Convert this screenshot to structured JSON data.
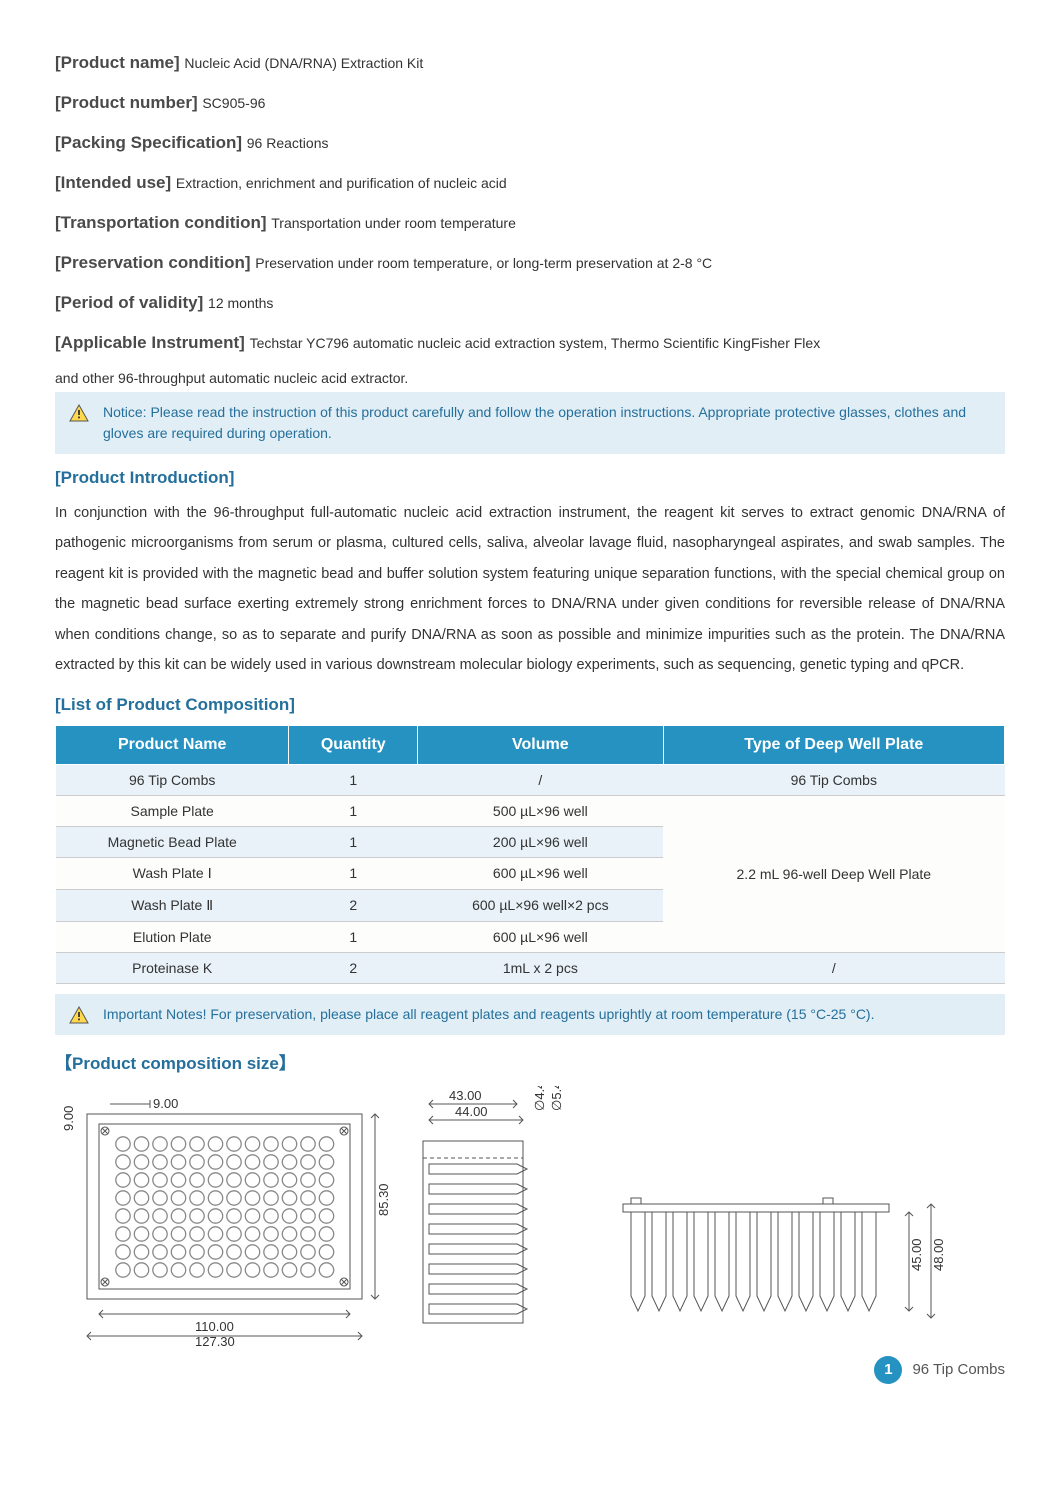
{
  "meta": [
    {
      "label": "[Product name]",
      "value": "Nucleic Acid (DNA/RNA) Extraction Kit"
    },
    {
      "label": "[Product number]",
      "value": "SC905-96"
    },
    {
      "label": "[Packing Specification]",
      "value": "96 Reactions"
    },
    {
      "label": "[Intended use]",
      "value": "Extraction, enrichment and purification of nucleic acid"
    },
    {
      "label": "[Transportation condition]",
      "value": "Transportation under room temperature"
    },
    {
      "label": "[Preservation condition]",
      "value": "Preservation under room temperature, or long-term preservation at 2-8 °C"
    },
    {
      "label": "[Period of validity]",
      "value": "12 months"
    },
    {
      "label": "[Applicable Instrument]",
      "value": "Techstar YC796 automatic nucleic acid extraction system, Thermo Scientific KingFisher Flex"
    }
  ],
  "meta_continue": "and other 96-throughput automatic nucleic acid extractor.",
  "notice1": "Notice: Please read the instruction of this product carefully and follow the operation instructions. Appropriate protective glasses, clothes and gloves are required during operation.",
  "section_intro_header": "[Product Introduction]",
  "intro": "In conjunction with the 96-throughput full-automatic nucleic acid extraction instrument, the reagent kit serves to extract genomic DNA/RNA of pathogenic microorganisms from serum or plasma, cultured cells, saliva, alveolar lavage fluid, nasopharyngeal aspirates, and swab samples. The reagent kit is provided with the magnetic bead and buffer solution system featuring unique separation functions, with the special chemical group on the magnetic bead surface exerting extremely strong enrichment forces to DNA/RNA under given conditions for reversible release of DNA/RNA when conditions change, so as to separate and purify DNA/RNA as soon as possible and minimize impurities such as the protein. The DNA/RNA extracted by this kit can be widely used in various downstream molecular biology experiments, such as sequencing, genetic typing and qPCR.",
  "section_list_header": "[List of Product Composition]",
  "table": {
    "headers": [
      "Product Name",
      "Quantity",
      "Volume",
      "Type of Deep Well Plate"
    ],
    "rows": [
      {
        "cells": [
          "96 Tip Combs",
          "1",
          "/",
          "96 Tip Combs"
        ],
        "alt": true
      },
      {
        "cells": [
          "Sample Plate",
          "1",
          "500 µL×96 well"
        ],
        "span_start": true,
        "span_text": "2.2 mL 96-well Deep Well Plate",
        "span_rows": 5,
        "alt": false
      },
      {
        "cells": [
          "Magnetic Bead Plate",
          "1",
          "200 µL×96 well"
        ],
        "alt": true
      },
      {
        "cells": [
          "Wash Plate Ⅰ",
          "1",
          "600 µL×96 well"
        ],
        "alt": false
      },
      {
        "cells": [
          "Wash Plate Ⅱ",
          "2",
          "600 µL×96 well×2 pcs"
        ],
        "alt": true
      },
      {
        "cells": [
          "Elution Plate",
          "1",
          "600 µL×96 well"
        ],
        "alt": false
      },
      {
        "cells": [
          "Proteinase K",
          "2",
          "1mL x 2 pcs",
          "/"
        ],
        "alt": true
      }
    ]
  },
  "notice2": "Important Notes! For preservation, please place all reagent plates and reagents uprightly at room temperature (15 °C-25 °C).",
  "section_size_header": "【Product composition size】",
  "diagrams": {
    "d1": {
      "w1": "9.00",
      "w2": "9.00",
      "width_inner": "110.00",
      "width_outer": "127.30",
      "height": "85.30"
    },
    "d2": {
      "top1": "43.00",
      "top2": "44.00",
      "diam1": "∅4.40",
      "diam2": "∅5.49"
    },
    "d3": {
      "h1": "45.00",
      "h2": "48.00"
    }
  },
  "page_number": "1",
  "footer_label": "96 Tip Combs",
  "colors": {
    "header_blue": "#2592c1",
    "notice_bg": "#e1eef5",
    "notice_text": "#246f9c",
    "section_header": "#246f9c",
    "text": "#333333",
    "border": "#cccccc"
  }
}
